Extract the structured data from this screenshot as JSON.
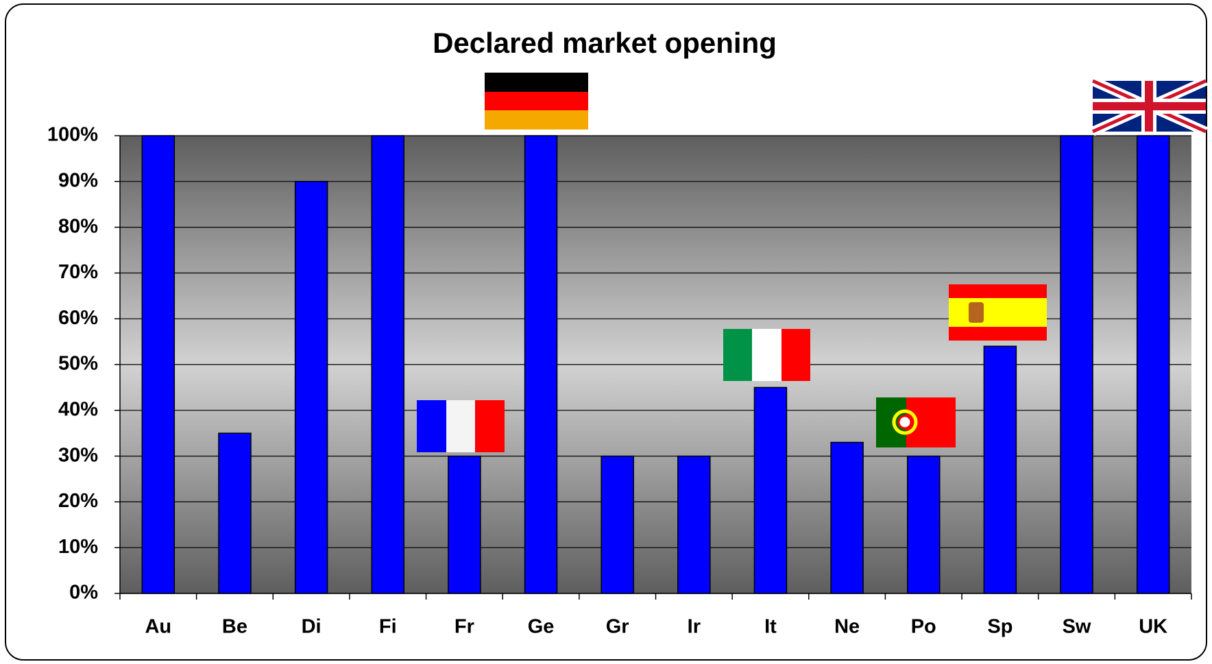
{
  "chart_data": {
    "type": "bar",
    "title": "Declared market opening",
    "categories": [
      "Au",
      "Be",
      "Di",
      "Fi",
      "Fr",
      "Ge",
      "Gr",
      "Ir",
      "It",
      "Ne",
      "Po",
      "Sp",
      "Sw",
      "UK"
    ],
    "values": [
      100,
      35,
      90,
      100,
      30,
      100,
      30,
      30,
      45,
      33,
      30,
      54,
      100,
      100
    ],
    "color": "#0000ff",
    "ylim": [
      0,
      100
    ],
    "yticks": [
      {
        "value": 0,
        "label": "0%"
      },
      {
        "value": 10,
        "label": "10%"
      },
      {
        "value": 20,
        "label": "20%"
      },
      {
        "value": 30,
        "label": "30%"
      },
      {
        "value": 40,
        "label": "40%"
      },
      {
        "value": 50,
        "label": "50%"
      },
      {
        "value": 60,
        "label": "60%"
      },
      {
        "value": 70,
        "label": "70%"
      },
      {
        "value": 80,
        "label": "80%"
      },
      {
        "value": 90,
        "label": "90%"
      },
      {
        "value": 100,
        "label": "100%"
      }
    ],
    "grid": true
  }
}
